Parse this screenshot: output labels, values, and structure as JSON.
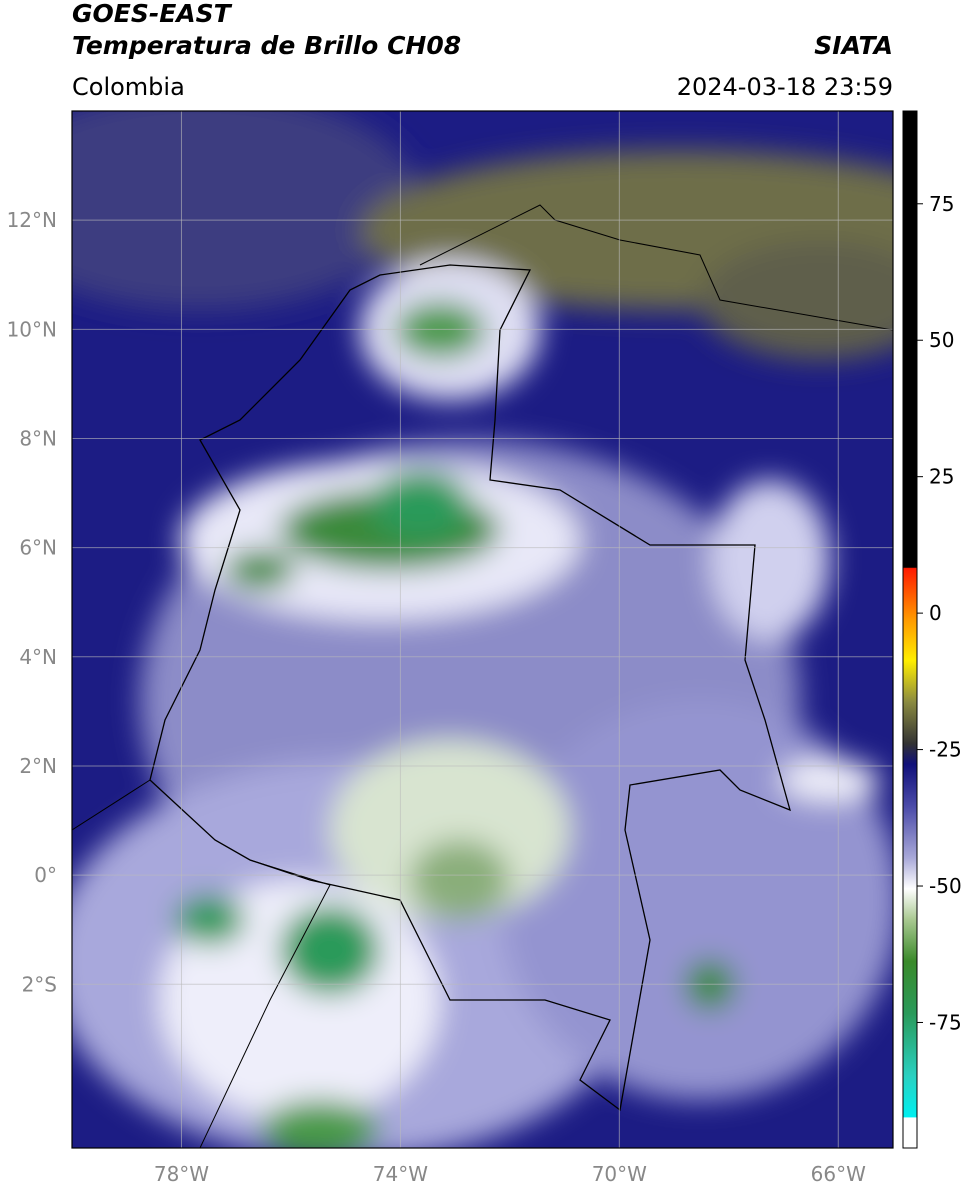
{
  "header": {
    "title": "GOES-EAST",
    "subtitle": "Temperatura de Brillo CH08",
    "region": "Colombia",
    "source": "SIATA",
    "timestamp": "2024-03-18 23:59"
  },
  "map": {
    "xlim": [
      -80,
      -65
    ],
    "ylim": [
      -5,
      14
    ],
    "xticks": [
      {
        "value": -78,
        "label": "78°W"
      },
      {
        "value": -74,
        "label": "74°W"
      },
      {
        "value": -70,
        "label": "70°W"
      },
      {
        "value": -66,
        "label": "66°W"
      }
    ],
    "yticks": [
      {
        "value": 12,
        "label": "12°N"
      },
      {
        "value": 10,
        "label": "10°N"
      },
      {
        "value": 8,
        "label": "8°N"
      },
      {
        "value": 6,
        "label": "6°N"
      },
      {
        "value": 4,
        "label": "4°N"
      },
      {
        "value": 2,
        "label": "2°N"
      },
      {
        "value": 0,
        "label": "0°"
      },
      {
        "value": -2,
        "label": "2°S"
      }
    ],
    "grid": true
  },
  "colorbar": {
    "lim": [
      -98,
      92
    ],
    "ticks": [
      75,
      50,
      25,
      0,
      -25,
      -50,
      -75
    ]
  }
}
